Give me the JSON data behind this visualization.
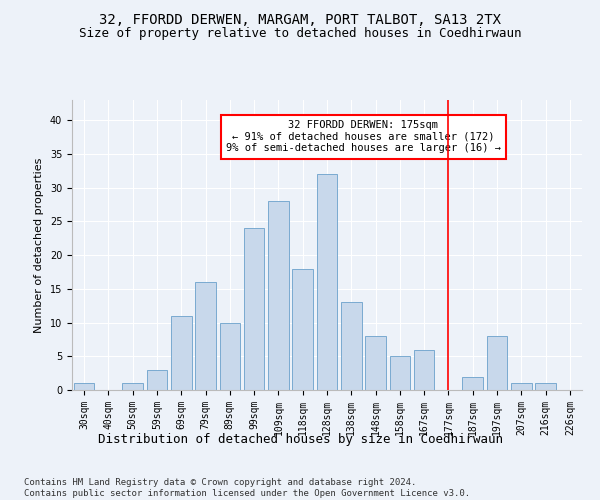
{
  "title": "32, FFORDD DERWEN, MARGAM, PORT TALBOT, SA13 2TX",
  "subtitle": "Size of property relative to detached houses in Coedhirwaun",
  "xlabel": "Distribution of detached houses by size in Coedhirwaun",
  "ylabel": "Number of detached properties",
  "bar_labels": [
    "30sqm",
    "40sqm",
    "50sqm",
    "59sqm",
    "69sqm",
    "79sqm",
    "89sqm",
    "99sqm",
    "109sqm",
    "118sqm",
    "128sqm",
    "138sqm",
    "148sqm",
    "158sqm",
    "167sqm",
    "177sqm",
    "187sqm",
    "197sqm",
    "207sqm",
    "216sqm",
    "226sqm"
  ],
  "bar_values": [
    1,
    0,
    1,
    3,
    11,
    16,
    10,
    24,
    28,
    18,
    32,
    13,
    8,
    5,
    6,
    0,
    2,
    8,
    1,
    1,
    0
  ],
  "bar_color": "#c8d8eb",
  "bar_edge_color": "#7aaad0",
  "annotation_line_x_label": "177sqm",
  "annotation_line_color": "red",
  "annotation_box_text": "32 FFORDD DERWEN: 175sqm\n← 91% of detached houses are smaller (172)\n9% of semi-detached houses are larger (16) →",
  "annotation_box_color": "red",
  "annotation_box_facecolor": "white",
  "ylim": [
    0,
    43
  ],
  "yticks": [
    0,
    5,
    10,
    15,
    20,
    25,
    30,
    35,
    40
  ],
  "background_color": "#edf2f9",
  "plot_background_color": "#edf2f9",
  "grid_color": "white",
  "footer_text": "Contains HM Land Registry data © Crown copyright and database right 2024.\nContains public sector information licensed under the Open Government Licence v3.0.",
  "title_fontsize": 10,
  "subtitle_fontsize": 9,
  "xlabel_fontsize": 9,
  "ylabel_fontsize": 8,
  "tick_fontsize": 7,
  "annotation_fontsize": 7.5,
  "footer_fontsize": 6.5
}
